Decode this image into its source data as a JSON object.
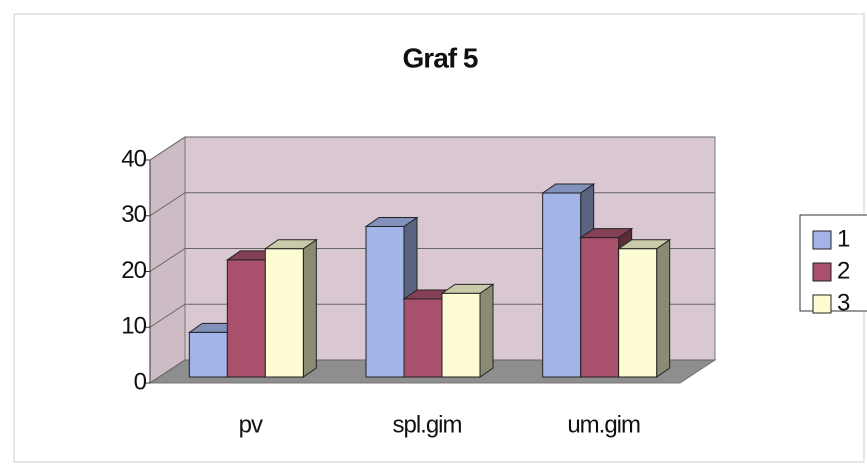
{
  "chart_data": {
    "type": "bar3d",
    "title": "Graf 5",
    "categories": [
      "pv",
      "spl.gim",
      "um.gim"
    ],
    "series": [
      {
        "name": "1",
        "color": "#a3b5e8",
        "values": [
          8,
          27,
          33
        ]
      },
      {
        "name": "2",
        "color": "#a8506c",
        "values": [
          21,
          14,
          25
        ]
      },
      {
        "name": "3",
        "color": "#fdfcd2",
        "values": [
          23,
          15,
          23
        ]
      }
    ],
    "ylim": [
      0,
      40
    ],
    "yticks": [
      0,
      10,
      20,
      30,
      40
    ],
    "grid": true,
    "legend": "right"
  }
}
